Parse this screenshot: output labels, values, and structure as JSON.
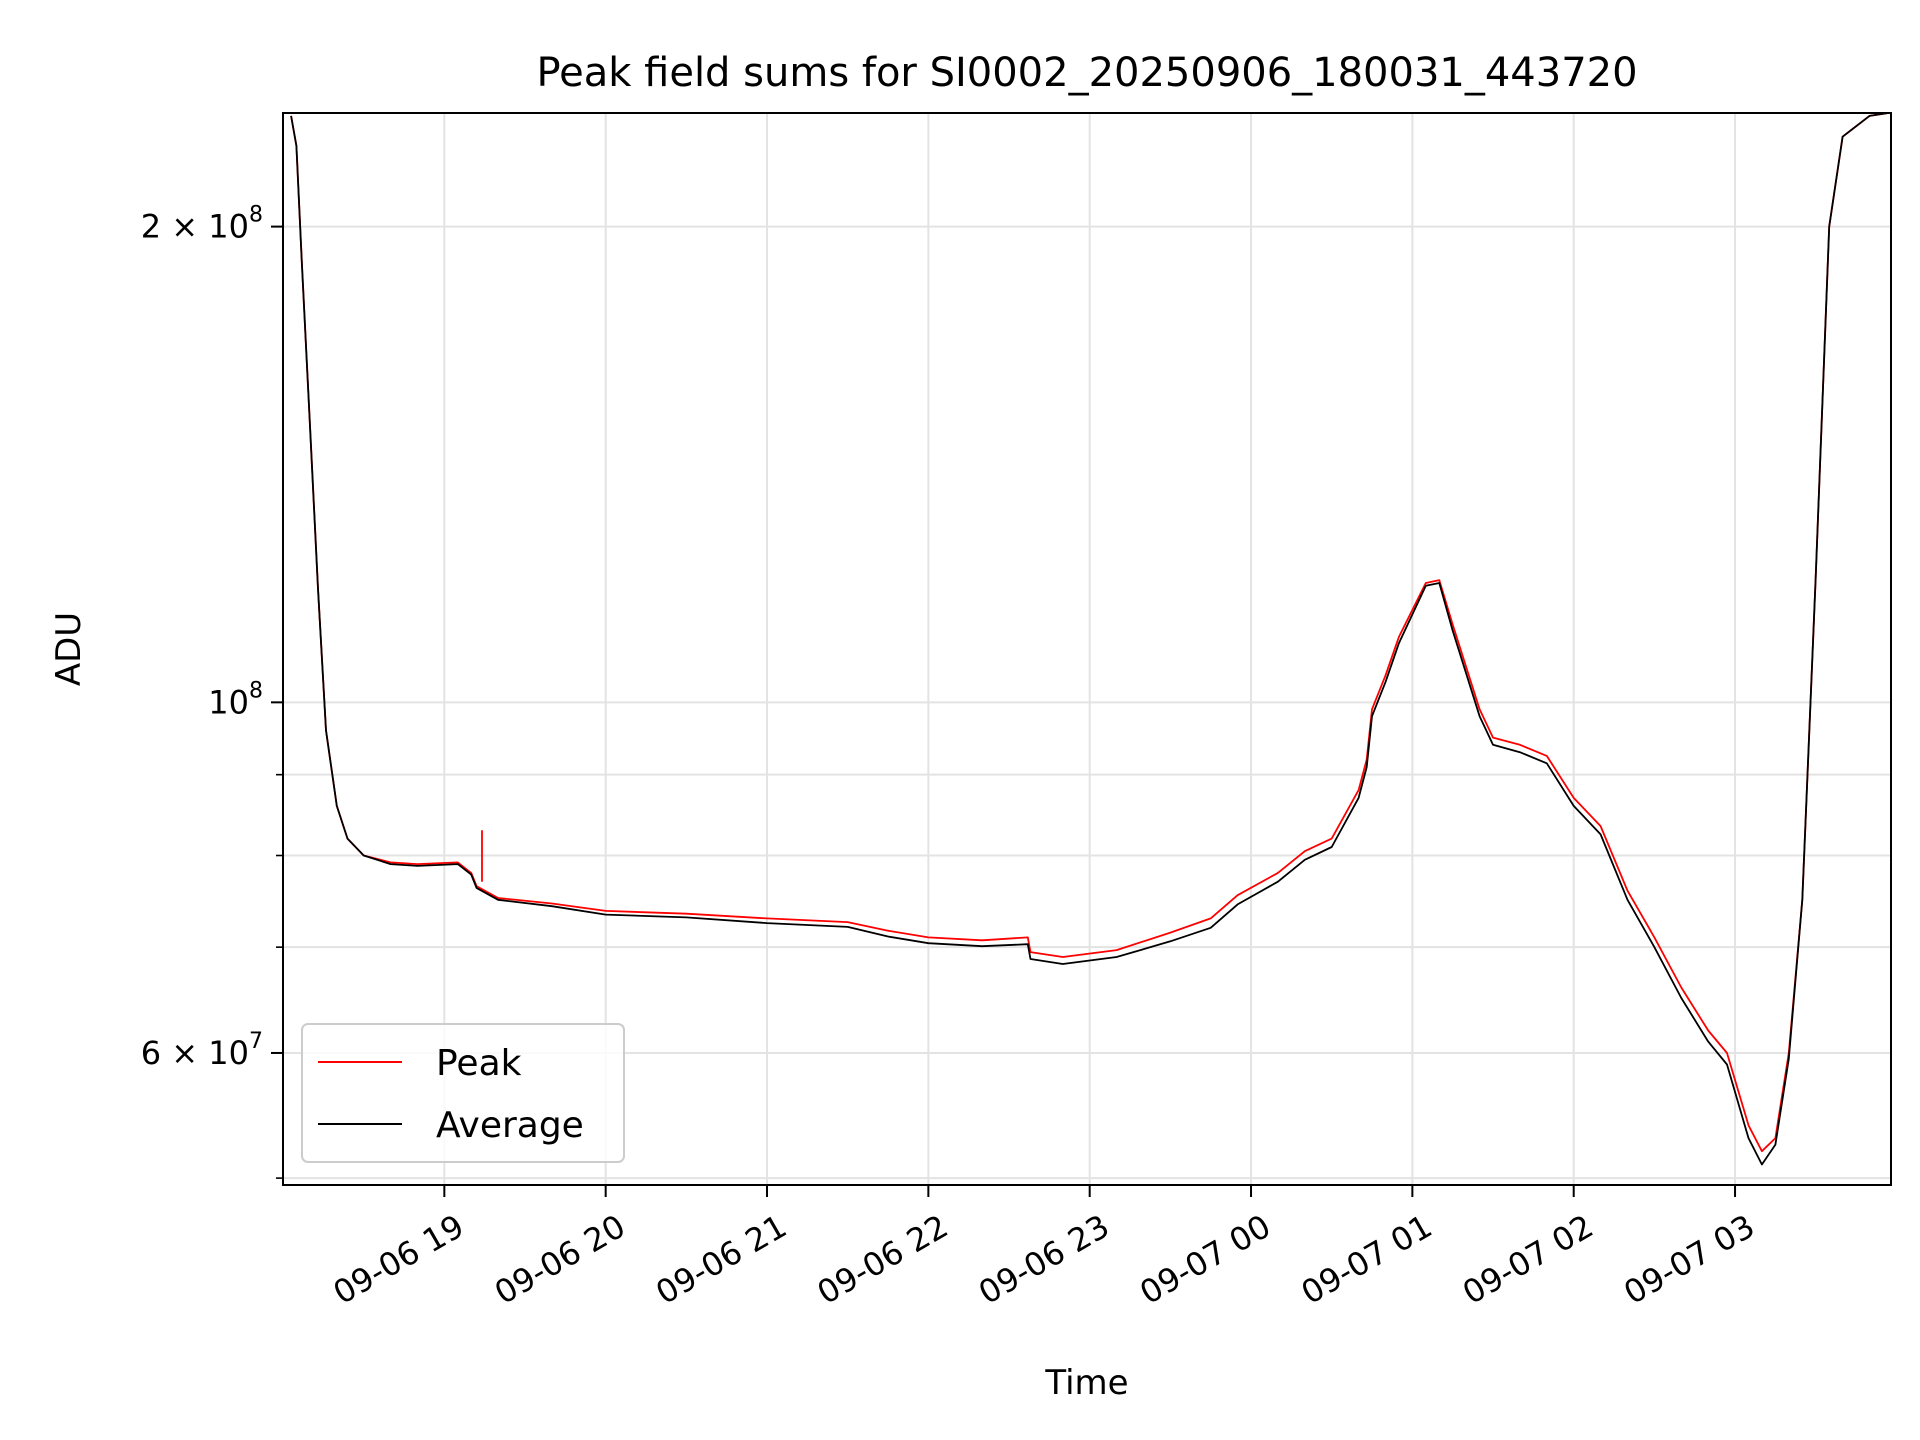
{
  "chart_data": {
    "type": "line",
    "title": "Peak field sums for SI0002_20250906_180031_443720",
    "xlabel": "Time",
    "ylabel": "ADU",
    "y_scale": "log",
    "grid": true,
    "legend_position": "lower-left",
    "xlim": [
      "2025-09-06 18:00",
      "2025-09-07 03:58"
    ],
    "ylim": [
      49500000,
      236000000
    ],
    "x_ticks": [
      {
        "value": "2025-09-06 19:00",
        "label": "09-06 19"
      },
      {
        "value": "2025-09-06 20:00",
        "label": "09-06 20"
      },
      {
        "value": "2025-09-06 21:00",
        "label": "09-06 21"
      },
      {
        "value": "2025-09-06 22:00",
        "label": "09-06 22"
      },
      {
        "value": "2025-09-06 23:00",
        "label": "09-06 23"
      },
      {
        "value": "2025-09-07 00:00",
        "label": "09-07 00"
      },
      {
        "value": "2025-09-07 01:00",
        "label": "09-07 01"
      },
      {
        "value": "2025-09-07 02:00",
        "label": "09-07 02"
      },
      {
        "value": "2025-09-07 03:00",
        "label": "09-07 03"
      }
    ],
    "y_major_ticks": [
      {
        "value": 60000000,
        "mantissa": "6",
        "exponent": "7"
      },
      {
        "value": 100000000,
        "mantissa": "",
        "exponent": "8"
      },
      {
        "value": 200000000,
        "mantissa": "2",
        "exponent": "8"
      }
    ],
    "y_minor_ticks": [
      50000000,
      70000000,
      80000000,
      90000000
    ],
    "series": [
      {
        "name": "Peak",
        "color": "#ff0000",
        "points": [
          [
            "2025-09-06 18:03",
            235000000
          ],
          [
            "2025-09-06 18:05",
            225000000
          ],
          [
            "2025-09-06 18:07",
            190000000
          ],
          [
            "2025-09-06 18:10",
            150000000
          ],
          [
            "2025-09-06 18:13",
            118000000
          ],
          [
            "2025-09-06 18:16",
            96000000
          ],
          [
            "2025-09-06 18:20",
            86000000
          ],
          [
            "2025-09-06 18:24",
            82000000
          ],
          [
            "2025-09-06 18:30",
            80000000
          ],
          [
            "2025-09-06 18:40",
            79200000
          ],
          [
            "2025-09-06 18:50",
            79000000
          ],
          [
            "2025-09-06 19:05",
            79200000
          ],
          [
            "2025-09-06 19:10",
            78000000
          ],
          [
            "2025-09-06 19:12",
            76500000
          ],
          [
            "2025-09-06 19:20",
            75200000
          ],
          [
            "2025-09-06 19:40",
            74600000
          ],
          [
            "2025-09-06 20:00",
            73800000
          ],
          [
            "2025-09-06 20:30",
            73500000
          ],
          [
            "2025-09-06 21:00",
            73000000
          ],
          [
            "2025-09-06 21:30",
            72600000
          ],
          [
            "2025-09-06 21:45",
            71700000
          ],
          [
            "2025-09-06 22:00",
            71000000
          ],
          [
            "2025-09-06 22:20",
            70700000
          ],
          [
            "2025-09-06 22:37",
            71000000
          ],
          [
            "2025-09-06 22:38",
            69500000
          ],
          [
            "2025-09-06 22:50",
            69000000
          ],
          [
            "2025-09-06 23:10",
            69700000
          ],
          [
            "2025-09-06 23:30",
            71500000
          ],
          [
            "2025-09-06 23:45",
            73000000
          ],
          [
            "2025-09-06 23:55",
            75500000
          ],
          [
            "2025-09-07 00:10",
            78000000
          ],
          [
            "2025-09-07 00:20",
            80500000
          ],
          [
            "2025-09-07 00:30",
            82000000
          ],
          [
            "2025-09-07 00:40",
            88000000
          ],
          [
            "2025-09-07 00:43",
            92000000
          ],
          [
            "2025-09-07 00:45",
            99000000
          ],
          [
            "2025-09-07 00:50",
            104000000
          ],
          [
            "2025-09-07 00:55",
            110000000
          ],
          [
            "2025-09-07 01:05",
            119000000
          ],
          [
            "2025-09-07 01:10",
            119500000
          ],
          [
            "2025-09-07 01:15",
            112000000
          ],
          [
            "2025-09-07 01:25",
            99000000
          ],
          [
            "2025-09-07 01:30",
            95000000
          ],
          [
            "2025-09-07 01:40",
            94000000
          ],
          [
            "2025-09-07 01:50",
            92500000
          ],
          [
            "2025-09-07 02:00",
            87000000
          ],
          [
            "2025-09-07 02:10",
            83500000
          ],
          [
            "2025-09-07 02:20",
            76000000
          ],
          [
            "2025-09-07 02:30",
            71000000
          ],
          [
            "2025-09-07 02:40",
            66000000
          ],
          [
            "2025-09-07 02:50",
            62000000
          ],
          [
            "2025-09-07 02:57",
            60000000
          ],
          [
            "2025-09-07 03:05",
            54000000
          ],
          [
            "2025-09-07 03:10",
            52000000
          ],
          [
            "2025-09-07 03:15",
            53000000
          ],
          [
            "2025-09-07 03:20",
            60000000
          ],
          [
            "2025-09-07 03:25",
            75000000
          ],
          [
            "2025-09-07 03:30",
            120000000
          ],
          [
            "2025-09-07 03:35",
            200000000
          ],
          [
            "2025-09-07 03:40",
            228000000
          ],
          [
            "2025-09-07 03:50",
            235000000
          ],
          [
            "2025-09-07 03:57",
            236000000
          ]
        ]
      },
      {
        "name": "Average",
        "color": "#000000",
        "points": [
          [
            "2025-09-06 18:03",
            235000000
          ],
          [
            "2025-09-06 18:05",
            225000000
          ],
          [
            "2025-09-06 18:07",
            190000000
          ],
          [
            "2025-09-06 18:10",
            150000000
          ],
          [
            "2025-09-06 18:13",
            118000000
          ],
          [
            "2025-09-06 18:16",
            96000000
          ],
          [
            "2025-09-06 18:20",
            86000000
          ],
          [
            "2025-09-06 18:24",
            82000000
          ],
          [
            "2025-09-06 18:30",
            80000000
          ],
          [
            "2025-09-06 18:40",
            79000000
          ],
          [
            "2025-09-06 18:50",
            78800000
          ],
          [
            "2025-09-06 19:05",
            79000000
          ],
          [
            "2025-09-06 19:10",
            77800000
          ],
          [
            "2025-09-06 19:12",
            76300000
          ],
          [
            "2025-09-06 19:20",
            75000000
          ],
          [
            "2025-09-06 19:40",
            74300000
          ],
          [
            "2025-09-06 20:00",
            73400000
          ],
          [
            "2025-09-06 20:30",
            73100000
          ],
          [
            "2025-09-06 21:00",
            72500000
          ],
          [
            "2025-09-06 21:30",
            72100000
          ],
          [
            "2025-09-06 21:45",
            71100000
          ],
          [
            "2025-09-06 22:00",
            70400000
          ],
          [
            "2025-09-06 22:20",
            70100000
          ],
          [
            "2025-09-06 22:37",
            70300000
          ],
          [
            "2025-09-06 22:38",
            68800000
          ],
          [
            "2025-09-06 22:50",
            68300000
          ],
          [
            "2025-09-06 23:10",
            69000000
          ],
          [
            "2025-09-06 23:30",
            70600000
          ],
          [
            "2025-09-06 23:45",
            72000000
          ],
          [
            "2025-09-06 23:55",
            74500000
          ],
          [
            "2025-09-07 00:10",
            77000000
          ],
          [
            "2025-09-07 00:20",
            79500000
          ],
          [
            "2025-09-07 00:30",
            81000000
          ],
          [
            "2025-09-07 00:40",
            87000000
          ],
          [
            "2025-09-07 00:43",
            91000000
          ],
          [
            "2025-09-07 00:45",
            98000000
          ],
          [
            "2025-09-07 00:50",
            103000000
          ],
          [
            "2025-09-07 00:55",
            109000000
          ],
          [
            "2025-09-07 01:05",
            118500000
          ],
          [
            "2025-09-07 01:10",
            119000000
          ],
          [
            "2025-09-07 01:15",
            111000000
          ],
          [
            "2025-09-07 01:25",
            98000000
          ],
          [
            "2025-09-07 01:30",
            94000000
          ],
          [
            "2025-09-07 01:40",
            93000000
          ],
          [
            "2025-09-07 01:50",
            91500000
          ],
          [
            "2025-09-07 02:00",
            86000000
          ],
          [
            "2025-09-07 02:10",
            82500000
          ],
          [
            "2025-09-07 02:20",
            75000000
          ],
          [
            "2025-09-07 02:30",
            70000000
          ],
          [
            "2025-09-07 02:40",
            65000000
          ],
          [
            "2025-09-07 02:50",
            61000000
          ],
          [
            "2025-09-07 02:57",
            59000000
          ],
          [
            "2025-09-07 03:05",
            53000000
          ],
          [
            "2025-09-07 03:10",
            51000000
          ],
          [
            "2025-09-07 03:15",
            52500000
          ],
          [
            "2025-09-07 03:20",
            59500000
          ],
          [
            "2025-09-07 03:25",
            75000000
          ],
          [
            "2025-09-07 03:30",
            120000000
          ],
          [
            "2025-09-07 03:35",
            200000000
          ],
          [
            "2025-09-07 03:40",
            228000000
          ],
          [
            "2025-09-07 03:50",
            235000000
          ],
          [
            "2025-09-07 03:57",
            236000000
          ]
        ]
      }
    ],
    "annotations": [
      {
        "kind": "spike",
        "series": "Peak",
        "x": "2025-09-06 19:14",
        "from": 77000000,
        "to": 83000000
      }
    ]
  }
}
